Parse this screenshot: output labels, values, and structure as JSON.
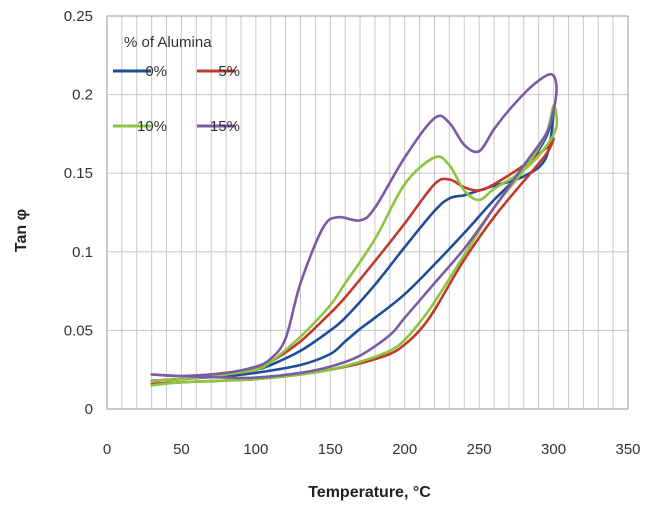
{
  "chart_data": {
    "type": "line",
    "xlabel": "Temperature, °C",
    "ylabel": "Tan φ",
    "xlim": [
      0,
      350
    ],
    "ylim": [
      0,
      0.25
    ],
    "x_ticks": [
      "0",
      "50",
      "100",
      "150",
      "200",
      "250",
      "300",
      "350"
    ],
    "y_ticks": [
      "0",
      "0.05",
      "0.1",
      "0.15",
      "0.2",
      "0.25"
    ],
    "grid": true,
    "legend_title": "% of Alumina",
    "legend_position": "top-left",
    "series": [
      {
        "name": "0%",
        "color": "#1f4e99",
        "heating": [
          [
            30,
            0.018
          ],
          [
            50,
            0.019
          ],
          [
            80,
            0.021
          ],
          [
            100,
            0.023
          ],
          [
            130,
            0.028
          ],
          [
            150,
            0.035
          ],
          [
            160,
            0.043
          ],
          [
            170,
            0.051
          ],
          [
            180,
            0.058
          ],
          [
            200,
            0.073
          ],
          [
            220,
            0.092
          ],
          [
            240,
            0.112
          ],
          [
            260,
            0.133
          ],
          [
            280,
            0.152
          ],
          [
            295,
            0.173
          ],
          [
            300,
            0.19
          ]
        ],
        "cooling": [
          [
            300,
            0.19
          ],
          [
            295,
            0.16
          ],
          [
            280,
            0.148
          ],
          [
            260,
            0.142
          ],
          [
            250,
            0.139
          ],
          [
            240,
            0.136
          ],
          [
            230,
            0.134
          ],
          [
            220,
            0.126
          ],
          [
            200,
            0.103
          ],
          [
            180,
            0.079
          ],
          [
            160,
            0.058
          ],
          [
            150,
            0.05
          ],
          [
            130,
            0.037
          ],
          [
            110,
            0.028
          ],
          [
            100,
            0.025
          ],
          [
            80,
            0.022
          ],
          [
            50,
            0.019
          ],
          [
            30,
            0.018
          ]
        ]
      },
      {
        "name": "5%",
        "color": "#c0392b",
        "heating": [
          [
            30,
            0.016
          ],
          [
            50,
            0.017
          ],
          [
            100,
            0.019
          ],
          [
            130,
            0.022
          ],
          [
            150,
            0.025
          ],
          [
            170,
            0.029
          ],
          [
            190,
            0.035
          ],
          [
            200,
            0.041
          ],
          [
            210,
            0.05
          ],
          [
            220,
            0.063
          ],
          [
            240,
            0.095
          ],
          [
            260,
            0.122
          ],
          [
            280,
            0.145
          ],
          [
            295,
            0.162
          ],
          [
            300,
            0.172
          ]
        ],
        "cooling": [
          [
            300,
            0.172
          ],
          [
            295,
            0.166
          ],
          [
            280,
            0.155
          ],
          [
            260,
            0.143
          ],
          [
            250,
            0.139
          ],
          [
            240,
            0.141
          ],
          [
            230,
            0.146
          ],
          [
            220,
            0.143
          ],
          [
            200,
            0.118
          ],
          [
            180,
            0.094
          ],
          [
            160,
            0.071
          ],
          [
            150,
            0.061
          ],
          [
            130,
            0.043
          ],
          [
            110,
            0.03
          ],
          [
            100,
            0.026
          ],
          [
            80,
            0.022
          ],
          [
            50,
            0.019
          ],
          [
            30,
            0.018
          ]
        ]
      },
      {
        "name": "10%",
        "color": "#8cc63f",
        "heating": [
          [
            30,
            0.015
          ],
          [
            50,
            0.017
          ],
          [
            100,
            0.019
          ],
          [
            130,
            0.022
          ],
          [
            150,
            0.025
          ],
          [
            170,
            0.03
          ],
          [
            190,
            0.037
          ],
          [
            200,
            0.044
          ],
          [
            210,
            0.055
          ],
          [
            220,
            0.068
          ],
          [
            240,
            0.098
          ],
          [
            260,
            0.128
          ],
          [
            280,
            0.152
          ],
          [
            295,
            0.175
          ],
          [
            300,
            0.193
          ]
        ],
        "cooling": [
          [
            300,
            0.193
          ],
          [
            302,
            0.18
          ],
          [
            295,
            0.167
          ],
          [
            280,
            0.152
          ],
          [
            260,
            0.14
          ],
          [
            250,
            0.133
          ],
          [
            240,
            0.139
          ],
          [
            230,
            0.155
          ],
          [
            220,
            0.16
          ],
          [
            200,
            0.143
          ],
          [
            180,
            0.108
          ],
          [
            160,
            0.08
          ],
          [
            150,
            0.066
          ],
          [
            130,
            0.046
          ],
          [
            110,
            0.03
          ],
          [
            100,
            0.025
          ],
          [
            80,
            0.022
          ],
          [
            50,
            0.019
          ],
          [
            30,
            0.018
          ]
        ]
      },
      {
        "name": "15%",
        "color": "#7b5aa6",
        "heating": [
          [
            30,
            0.022
          ],
          [
            50,
            0.021
          ],
          [
            80,
            0.02
          ],
          [
            100,
            0.02
          ],
          [
            130,
            0.023
          ],
          [
            150,
            0.027
          ],
          [
            170,
            0.034
          ],
          [
            190,
            0.047
          ],
          [
            200,
            0.058
          ],
          [
            220,
            0.08
          ],
          [
            240,
            0.102
          ],
          [
            260,
            0.128
          ],
          [
            280,
            0.155
          ],
          [
            295,
            0.175
          ],
          [
            300,
            0.19
          ]
        ],
        "cooling": [
          [
            300,
            0.19
          ],
          [
            302,
            0.205
          ],
          [
            298,
            0.213
          ],
          [
            285,
            0.205
          ],
          [
            270,
            0.19
          ],
          [
            260,
            0.178
          ],
          [
            250,
            0.164
          ],
          [
            240,
            0.168
          ],
          [
            230,
            0.182
          ],
          [
            220,
            0.185
          ],
          [
            200,
            0.16
          ],
          [
            180,
            0.128
          ],
          [
            170,
            0.12
          ],
          [
            155,
            0.122
          ],
          [
            145,
            0.115
          ],
          [
            130,
            0.08
          ],
          [
            120,
            0.045
          ],
          [
            110,
            0.032
          ],
          [
            100,
            0.027
          ],
          [
            80,
            0.023
          ],
          [
            50,
            0.021
          ],
          [
            30,
            0.022
          ]
        ]
      }
    ]
  }
}
